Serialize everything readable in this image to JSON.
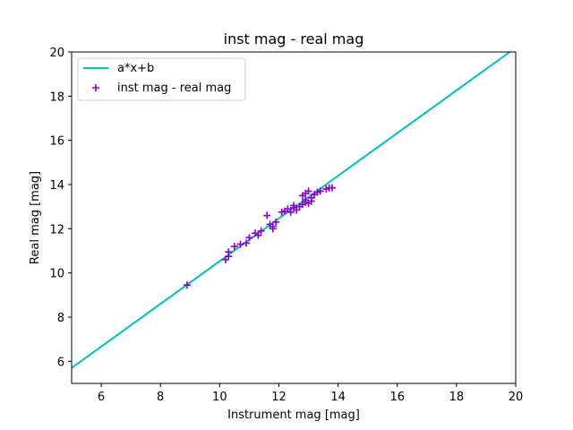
{
  "colors": {
    "fit_line": "#00bfbf",
    "points": "#8b00c9",
    "axes": "#000000",
    "legend_border": "#cccccc",
    "background": "#ffffff"
  },
  "chart_data": {
    "type": "scatter",
    "title": "inst mag - real mag",
    "xlabel": "Instrument mag [mag]",
    "ylabel": "Real mag [mag]",
    "xlim": [
      5,
      20
    ],
    "ylim": [
      5,
      20
    ],
    "xticks": [
      6,
      8,
      10,
      12,
      14,
      16,
      18,
      20
    ],
    "yticks": [
      6,
      8,
      10,
      12,
      14,
      16,
      18,
      20
    ],
    "grid": false,
    "legend_position": "upper-left",
    "series": [
      {
        "name": "a*x+b",
        "kind": "line",
        "x": [
          5.0,
          19.8
        ],
        "y": [
          5.7,
          20.0
        ]
      },
      {
        "name": "inst mag - real mag",
        "kind": "scatter",
        "marker": "+",
        "x": [
          8.9,
          10.2,
          10.3,
          10.3,
          10.5,
          10.7,
          10.9,
          11.0,
          11.2,
          11.3,
          11.4,
          11.6,
          11.7,
          11.8,
          11.8,
          11.9,
          12.1,
          12.2,
          12.3,
          12.4,
          12.5,
          12.5,
          12.6,
          12.7,
          12.8,
          12.8,
          12.9,
          12.9,
          12.9,
          13.0,
          13.0,
          13.1,
          13.1,
          13.2,
          13.3,
          13.4,
          13.6,
          13.7,
          13.8
        ],
        "y": [
          9.45,
          10.6,
          10.75,
          10.95,
          11.2,
          11.3,
          11.35,
          11.6,
          11.8,
          11.7,
          11.9,
          12.6,
          12.2,
          12.1,
          12.0,
          12.3,
          12.75,
          12.8,
          12.9,
          12.75,
          12.95,
          13.05,
          12.85,
          13.0,
          13.5,
          13.1,
          13.2,
          13.6,
          13.3,
          13.7,
          13.15,
          13.4,
          13.25,
          13.55,
          13.65,
          13.7,
          13.8,
          13.85,
          13.85
        ]
      }
    ]
  }
}
